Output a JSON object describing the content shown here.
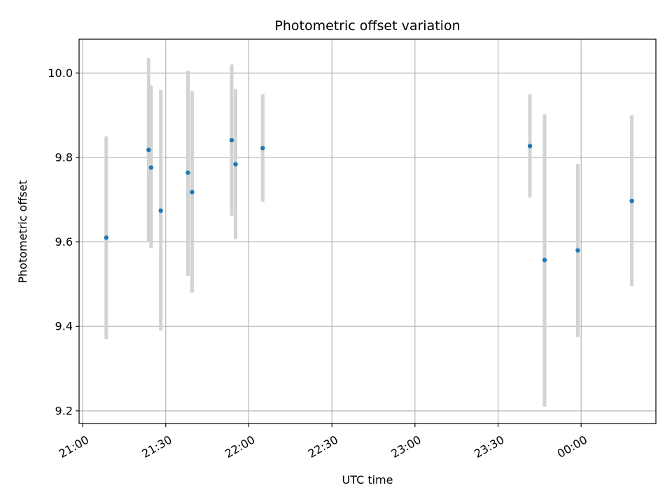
{
  "chart_data": {
    "type": "scatter",
    "title": "Photometric offset variation",
    "xlabel": "UTC time",
    "ylabel": "Photometric offset",
    "x_ticks": [
      "21:00",
      "21:30",
      "22:00",
      "22:30",
      "23:00",
      "23:30",
      "00:00"
    ],
    "x_tick_minutes": [
      0,
      30,
      60,
      90,
      120,
      150,
      180
    ],
    "xlim_minutes": [
      -1.3,
      207.0
    ],
    "y_ticks": [
      "9.2",
      "9.4",
      "9.6",
      "9.8",
      "10.0"
    ],
    "y_tick_values": [
      9.2,
      9.4,
      9.6,
      9.8,
      10.0
    ],
    "ylim": [
      9.17,
      10.08
    ],
    "grid": true,
    "marker_color": "#1f77b4",
    "errorbar_color": "#d3d3d3",
    "points": [
      {
        "time": "21:08:30",
        "minutes": 8.5,
        "value": 9.61,
        "low": 9.37,
        "high": 9.85
      },
      {
        "time": "21:23:50",
        "minutes": 23.8,
        "value": 9.818,
        "low": 9.6,
        "high": 10.035
      },
      {
        "time": "21:24:40",
        "minutes": 24.7,
        "value": 9.776,
        "low": 9.585,
        "high": 9.97
      },
      {
        "time": "21:28:10",
        "minutes": 28.2,
        "value": 9.674,
        "low": 9.39,
        "high": 9.96
      },
      {
        "time": "21:38:00",
        "minutes": 38.0,
        "value": 9.764,
        "low": 9.52,
        "high": 10.005
      },
      {
        "time": "21:39:30",
        "minutes": 39.5,
        "value": 9.718,
        "low": 9.48,
        "high": 9.957
      },
      {
        "time": "21:53:50",
        "minutes": 53.8,
        "value": 9.841,
        "low": 9.662,
        "high": 10.02
      },
      {
        "time": "21:55:10",
        "minutes": 55.2,
        "value": 9.784,
        "low": 9.607,
        "high": 9.962
      },
      {
        "time": "22:05:00",
        "minutes": 65.0,
        "value": 9.822,
        "low": 9.695,
        "high": 9.95
      },
      {
        "time": "23:41:30",
        "minutes": 161.5,
        "value": 9.827,
        "low": 9.705,
        "high": 9.95
      },
      {
        "time": "23:46:50",
        "minutes": 166.8,
        "value": 9.557,
        "low": 9.21,
        "high": 9.902
      },
      {
        "time": "23:58:50",
        "minutes": 178.8,
        "value": 9.58,
        "low": 9.375,
        "high": 9.785
      },
      {
        "time": "00:18:20",
        "minutes": 198.3,
        "value": 9.697,
        "low": 9.495,
        "high": 9.9
      }
    ]
  }
}
